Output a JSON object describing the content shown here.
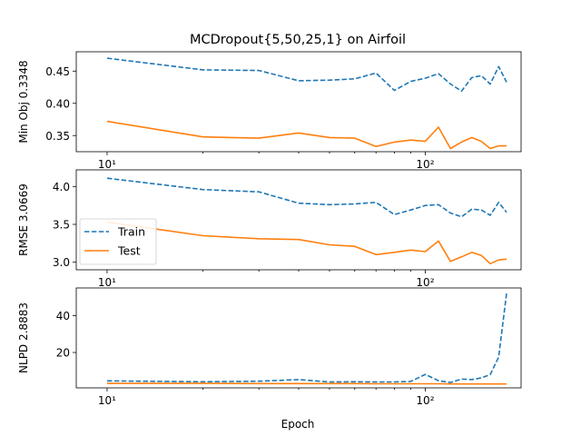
{
  "chart_data": {
    "type": "line",
    "title": "MCDropout{5,50,25,1} on Airfoil",
    "xlabel": "Epoch",
    "xscale": "log",
    "xlim": [
      8,
      200
    ],
    "x": [
      10,
      20,
      30,
      40,
      50,
      60,
      70,
      80,
      90,
      100,
      110,
      120,
      130,
      140,
      150,
      160,
      170,
      180
    ],
    "x_tick_labels": [
      "10^1",
      "10^2"
    ],
    "legend": {
      "placement": "center-left",
      "panel": 2
    },
    "colors": {
      "Train": "#1f77b4",
      "Test": "#ff7f0e"
    },
    "panels": [
      {
        "ylabel": "Min Obj 0.3348",
        "ylim": [
          0.325,
          0.48
        ],
        "yticks": [
          0.35,
          0.4,
          0.45
        ],
        "ytick_labels": [
          "0.35",
          "0.40",
          "0.45"
        ],
        "series": [
          {
            "name": "Train",
            "style": "dashed",
            "values": [
              0.47,
              0.452,
              0.451,
              0.435,
              0.436,
              0.438,
              0.447,
              0.42,
              0.434,
              0.439,
              0.446,
              0.43,
              0.419,
              0.44,
              0.443,
              0.43,
              0.457,
              0.433
            ]
          },
          {
            "name": "Test",
            "style": "solid",
            "values": [
              0.372,
              0.348,
              0.346,
              0.354,
              0.347,
              0.346,
              0.333,
              0.34,
              0.343,
              0.341,
              0.363,
              0.33,
              0.34,
              0.347,
              0.341,
              0.33,
              0.334,
              0.334
            ]
          }
        ]
      },
      {
        "ylabel": "RMSE 3.0669",
        "ylim": [
          2.9,
          4.22
        ],
        "yticks": [
          3.0,
          3.5,
          4.0
        ],
        "ytick_labels": [
          "3.0",
          "3.5",
          "4.0"
        ],
        "series": [
          {
            "name": "Train",
            "style": "dashed",
            "values": [
              4.11,
              3.96,
              3.93,
              3.78,
              3.76,
              3.77,
              3.79,
              3.63,
              3.69,
              3.75,
              3.76,
              3.65,
              3.6,
              3.7,
              3.69,
              3.62,
              3.79,
              3.66
            ]
          },
          {
            "name": "Test",
            "style": "solid",
            "values": [
              3.53,
              3.35,
              3.31,
              3.3,
              3.23,
              3.21,
              3.1,
              3.13,
              3.16,
              3.14,
              3.28,
              3.01,
              3.07,
              3.13,
              3.09,
              2.98,
              3.03,
              3.04
            ]
          }
        ]
      },
      {
        "ylabel": "NLPD 2.8883",
        "ylim": [
          0.8,
          55
        ],
        "yticks": [
          20,
          40
        ],
        "ytick_labels": [
          "20",
          "40"
        ],
        "series": [
          {
            "name": "Train",
            "style": "dashed",
            "values": [
              4.6,
              4.1,
              4.4,
              5.3,
              4.0,
              4.1,
              4.0,
              4.0,
              4.3,
              8.1,
              4.7,
              3.7,
              5.6,
              5.3,
              6.2,
              8.0,
              17.5,
              52.0
            ]
          },
          {
            "name": "Test",
            "style": "solid",
            "values": [
              3.2,
              3.2,
              3.1,
              3.1,
              3.1,
              3.1,
              3.0,
              3.0,
              3.0,
              3.0,
              3.0,
              2.9,
              2.9,
              2.9,
              2.9,
              2.9,
              2.9,
              2.9
            ]
          }
        ]
      }
    ]
  }
}
